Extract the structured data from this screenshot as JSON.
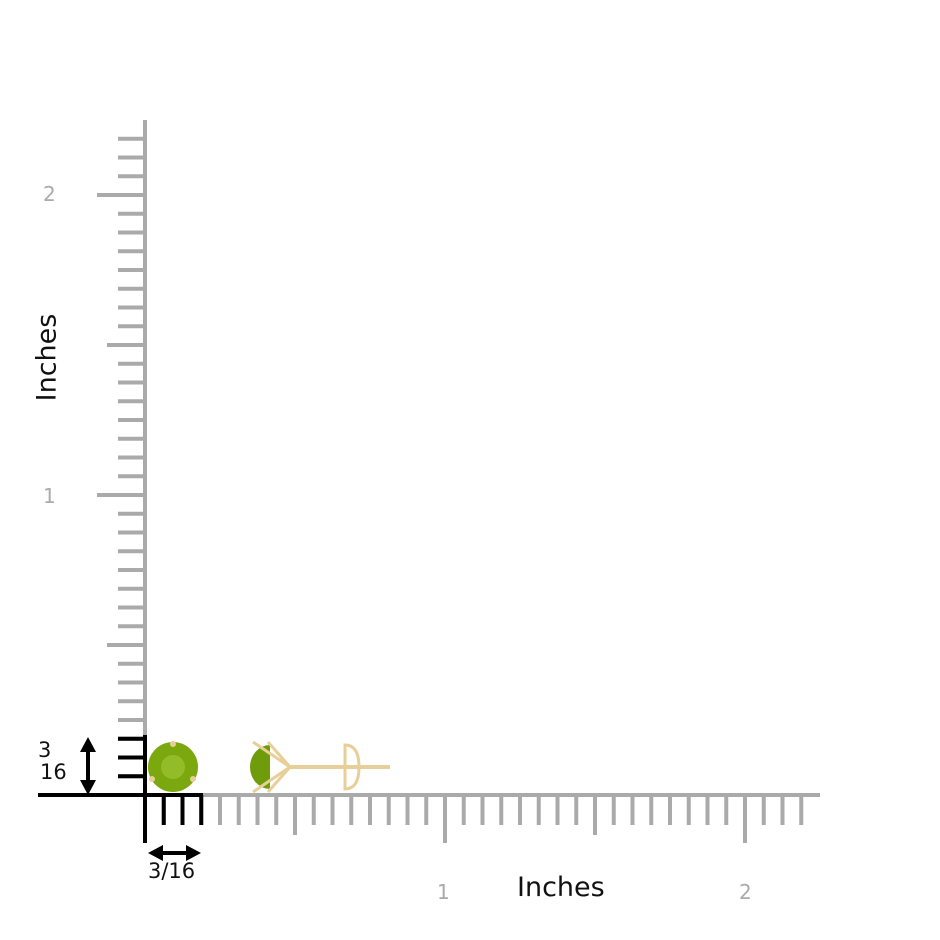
{
  "ruler": {
    "x_axis_label": "Inches",
    "y_axis_label": "Inches",
    "x_ticks": [
      "1",
      "2"
    ],
    "y_ticks": [
      "1",
      "2"
    ],
    "width_label": "3/16",
    "height_label_num": "3",
    "height_label_den": "16"
  },
  "colors": {
    "ruler": "#aaaaaa",
    "marker": "#000000",
    "gem": "#7aa80e",
    "metal": "#e8cf98"
  }
}
